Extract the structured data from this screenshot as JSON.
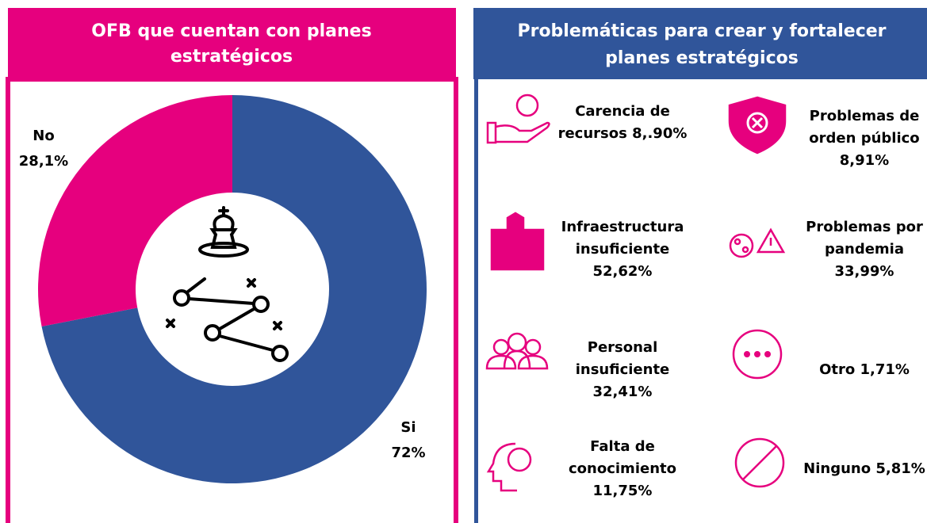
{
  "chart_data": {
    "type": "donut",
    "title": "OFB que cuentan con planes estratégicos",
    "categories": [
      "Si",
      "No"
    ],
    "values": [
      72,
      28.1
    ],
    "value_labels": [
      "72%",
      "28,1%"
    ],
    "colors": [
      "#30559a",
      "#e6007e"
    ]
  },
  "problems": {
    "title": "Problemáticas para crear y fortalecer planes estratégicos",
    "items": [
      {
        "lines": [
          "Carencia de",
          "recursos 8,.90%"
        ]
      },
      {
        "lines": [
          "Problemas de",
          "orden público",
          "8,91%"
        ]
      },
      {
        "lines": [
          "Infraestructura",
          "insuficiente",
          "52,62%"
        ]
      },
      {
        "lines": [
          "Problemas por",
          "pandemia",
          "33,99%"
        ]
      },
      {
        "lines": [
          "Personal",
          "insuficiente",
          "32,41%"
        ]
      },
      {
        "lines": [
          "Otro 1,71%"
        ]
      },
      {
        "lines": [
          "Falta de",
          "conocimiento",
          "11,75%"
        ]
      },
      {
        "lines": [
          "Ninguno 5,81%"
        ]
      }
    ]
  }
}
